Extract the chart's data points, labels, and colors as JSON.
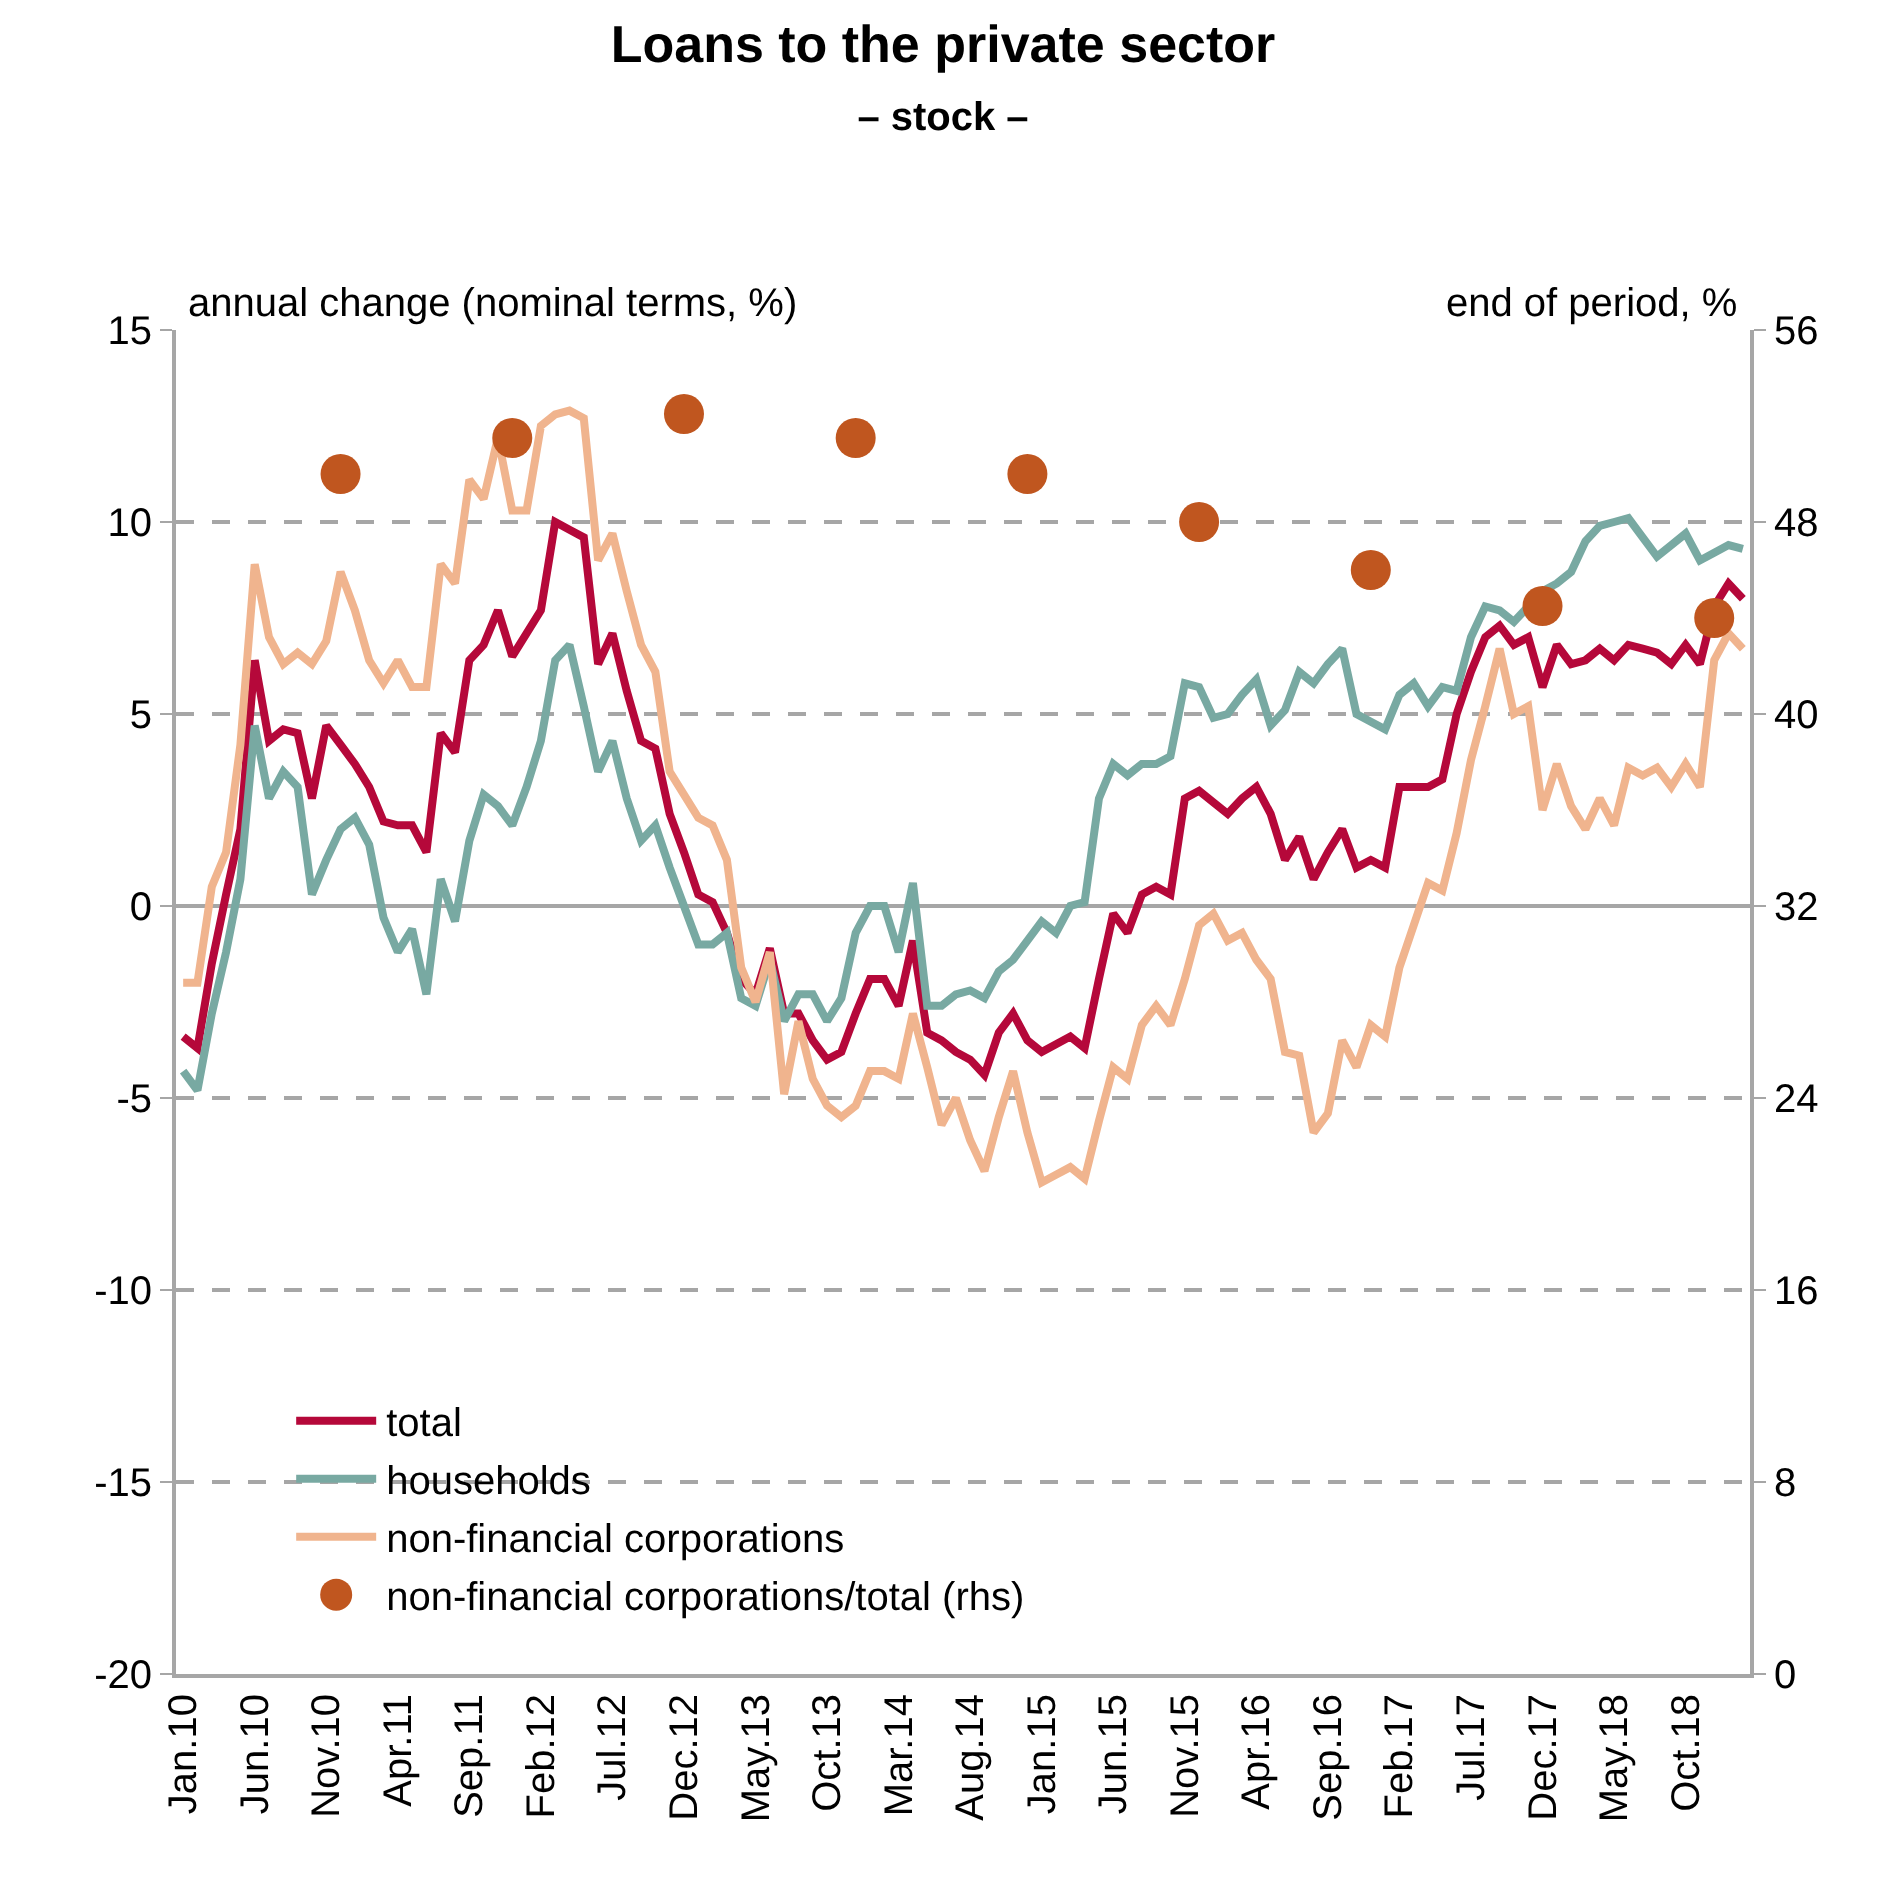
{
  "chart_data": {
    "type": "line",
    "title": "Loans to the private sector",
    "subtitle": "– stock –",
    "ylabel": "annual change (nominal terms, %)",
    "y2label": "end of period, %",
    "categories": [
      "Jan.10",
      null,
      null,
      null,
      null,
      "Jun.10",
      null,
      null,
      null,
      null,
      "Nov.10",
      null,
      null,
      null,
      null,
      "Apr.11",
      null,
      null,
      null,
      null,
      "Sep.11",
      null,
      null,
      null,
      null,
      "Feb.12",
      null,
      null,
      null,
      null,
      "Jul.12",
      null,
      null,
      null,
      null,
      "Dec.12",
      null,
      null,
      null,
      null,
      "May.13",
      null,
      null,
      null,
      null,
      "Oct.13",
      null,
      null,
      null,
      null,
      "Mar.14",
      null,
      null,
      null,
      null,
      "Aug.14",
      null,
      null,
      null,
      null,
      "Jan.15",
      null,
      null,
      null,
      null,
      "Jun.15",
      null,
      null,
      null,
      null,
      "Nov.15",
      null,
      null,
      null,
      null,
      "Apr.16",
      null,
      null,
      null,
      null,
      "Sep.16",
      null,
      null,
      null,
      null,
      "Feb.17",
      null,
      null,
      null,
      null,
      "Jul.17",
      null,
      null,
      null,
      null,
      "Dec.17",
      null,
      null,
      null,
      null,
      "May.18",
      null,
      null,
      null,
      null,
      "Oct.18",
      null,
      null,
      null,
      null
    ],
    "series": [
      {
        "name": "total",
        "color": "#b5083a",
        "values": [
          -3.4,
          -3.7,
          -1.5,
          0.3,
          2.0,
          6.4,
          4.3,
          4.6,
          4.5,
          2.8,
          4.7,
          4.2,
          3.7,
          3.1,
          2.2,
          2.1,
          2.1,
          1.4,
          4.5,
          4.0,
          6.4,
          6.8,
          7.7,
          6.5,
          7.1,
          7.7,
          10.0,
          9.8,
          9.6,
          6.3,
          7.1,
          5.6,
          4.3,
          4.1,
          2.4,
          1.4,
          0.3,
          0.1,
          -0.7,
          -1.9,
          -2.3,
          -1.1,
          -2.8,
          -2.8,
          -3.5,
          -4.0,
          -3.8,
          -2.8,
          -1.9,
          -1.9,
          -2.6,
          -0.9,
          -3.3,
          -3.5,
          -3.8,
          -4.0,
          -4.4,
          -3.3,
          -2.8,
          -3.5,
          -3.8,
          -3.6,
          -3.4,
          -3.7,
          -1.9,
          -0.2,
          -0.7,
          0.3,
          0.5,
          0.3,
          2.8,
          3.0,
          2.7,
          2.4,
          2.8,
          3.1,
          2.4,
          1.2,
          1.8,
          0.7,
          1.4,
          2.0,
          1.0,
          1.2,
          1.0,
          3.1,
          3.1,
          3.1,
          3.3,
          5.0,
          6.1,
          7.0,
          7.3,
          6.8,
          7.0,
          5.7,
          6.8,
          6.3,
          6.4,
          6.7,
          6.4,
          6.8,
          6.7,
          6.6,
          6.3,
          6.8,
          6.3,
          7.8,
          8.4,
          8.0
        ]
      },
      {
        "name": "households",
        "color": "#78a9a2",
        "values": [
          -4.3,
          -4.8,
          -2.8,
          -1.2,
          0.7,
          4.7,
          2.8,
          3.5,
          3.1,
          0.3,
          1.2,
          2.0,
          2.3,
          1.6,
          -0.3,
          -1.2,
          -0.6,
          -2.3,
          0.7,
          -0.4,
          1.7,
          2.9,
          2.6,
          2.1,
          3.1,
          4.3,
          6.4,
          6.8,
          5.2,
          3.5,
          4.3,
          2.8,
          1.7,
          2.1,
          1.0,
          0.0,
          -1.0,
          -1.0,
          -0.7,
          -2.4,
          -2.6,
          -1.4,
          -3.0,
          -2.3,
          -2.3,
          -3.0,
          -2.4,
          -0.7,
          0.0,
          0.0,
          -1.2,
          0.6,
          -2.6,
          -2.6,
          -2.3,
          -2.2,
          -2.4,
          -1.7,
          -1.4,
          -0.9,
          -0.4,
          -0.7,
          0.0,
          0.1,
          2.8,
          3.7,
          3.4,
          3.7,
          3.7,
          3.9,
          5.8,
          5.7,
          4.9,
          5.0,
          5.5,
          5.9,
          4.7,
          5.1,
          6.1,
          5.8,
          6.3,
          6.7,
          5.0,
          4.8,
          4.6,
          5.5,
          5.8,
          5.2,
          5.7,
          5.6,
          7.0,
          7.8,
          7.7,
          7.4,
          7.8,
          8.2,
          8.4,
          8.7,
          9.5,
          9.9,
          10.0,
          10.1,
          9.6,
          9.1,
          9.4,
          9.7,
          9.0,
          9.2,
          9.4,
          9.3
        ]
      },
      {
        "name": "non-financial corporations",
        "color": "#f0b48e",
        "values": [
          -2.0,
          -2.0,
          0.5,
          1.4,
          4.2,
          8.9,
          7.0,
          6.3,
          6.6,
          6.3,
          6.9,
          8.7,
          7.7,
          6.4,
          5.8,
          6.4,
          5.7,
          5.7,
          8.9,
          8.4,
          11.1,
          10.6,
          12.2,
          10.3,
          10.3,
          12.5,
          12.8,
          12.9,
          12.7,
          9.0,
          9.7,
          8.2,
          6.8,
          6.1,
          3.5,
          2.9,
          2.3,
          2.1,
          1.2,
          -1.6,
          -2.5,
          -1.2,
          -4.9,
          -3.0,
          -4.5,
          -5.2,
          -5.5,
          -5.2,
          -4.3,
          -4.3,
          -4.5,
          -2.8,
          -4.2,
          -5.7,
          -5.0,
          -6.1,
          -6.9,
          -5.5,
          -4.3,
          -5.9,
          -7.2,
          -7.0,
          -6.8,
          -7.1,
          -5.6,
          -4.2,
          -4.5,
          -3.1,
          -2.6,
          -3.1,
          -1.9,
          -0.5,
          -0.2,
          -0.9,
          -0.7,
          -1.4,
          -1.9,
          -3.8,
          -3.9,
          -5.9,
          -5.4,
          -3.5,
          -4.2,
          -3.1,
          -3.4,
          -1.6,
          -0.5,
          0.6,
          0.4,
          1.9,
          3.8,
          5.2,
          6.7,
          5.0,
          5.2,
          2.5,
          3.7,
          2.6,
          2.0,
          2.8,
          2.1,
          3.6,
          3.4,
          3.6,
          3.1,
          3.7,
          3.1,
          6.4,
          7.1,
          6.7
        ]
      },
      {
        "name": "non-financial corporations/total (rhs)",
        "type": "scatter",
        "axis": "y2",
        "marker": "circle",
        "color": "#c0561f",
        "values": [
          null,
          null,
          null,
          null,
          null,
          null,
          null,
          null,
          null,
          null,
          null,
          50,
          null,
          null,
          null,
          null,
          null,
          null,
          null,
          null,
          null,
          null,
          null,
          51.5,
          null,
          null,
          null,
          null,
          null,
          null,
          null,
          null,
          null,
          null,
          null,
          52.5,
          null,
          null,
          null,
          null,
          null,
          null,
          null,
          null,
          null,
          null,
          null,
          51.5,
          null,
          null,
          null,
          null,
          null,
          null,
          null,
          null,
          null,
          null,
          null,
          50,
          null,
          null,
          null,
          null,
          null,
          null,
          null,
          null,
          null,
          null,
          null,
          48,
          null,
          null,
          null,
          null,
          null,
          null,
          null,
          null,
          null,
          null,
          null,
          46,
          null,
          null,
          null,
          null,
          null,
          null,
          null,
          null,
          null,
          null,
          null,
          44.5,
          null,
          null,
          null,
          null,
          null,
          null,
          null,
          null,
          null,
          null,
          null,
          44,
          null,
          null
        ]
      }
    ],
    "ylim": [
      -20,
      15
    ],
    "yticks": [
      -20,
      -15,
      -10,
      -5,
      0,
      5,
      10,
      15
    ],
    "y2lim": [
      0,
      56
    ],
    "y2ticks": [
      0,
      8,
      16,
      24,
      32,
      40,
      48,
      56
    ],
    "grid": "y",
    "legend": "bottom left"
  }
}
